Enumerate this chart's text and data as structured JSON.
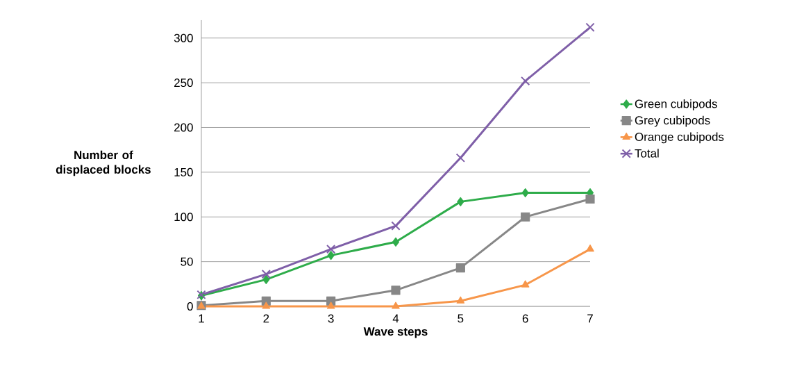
{
  "chart_data": {
    "type": "line",
    "xlabel": "Wave steps",
    "ylabel": "Number of displaced blocks",
    "categories": [
      "1",
      "2",
      "3",
      "4",
      "5",
      "6",
      "7"
    ],
    "series": [
      {
        "name": "Green cubipods",
        "color": "#2eac4a",
        "marker": "diamond",
        "values": [
          12,
          30,
          57,
          72,
          117,
          127,
          127
        ]
      },
      {
        "name": "Grey cubipods",
        "color": "#878787",
        "marker": "square",
        "values": [
          1,
          6,
          6,
          18,
          43,
          100,
          120
        ]
      },
      {
        "name": "Orange cubipods",
        "color": "#f7964a",
        "marker": "triangle",
        "values": [
          0,
          0,
          0,
          0,
          6,
          24,
          64
        ]
      },
      {
        "name": "Total",
        "color": "#7f5fa8",
        "marker": "cross",
        "values": [
          13,
          36,
          64,
          90,
          166,
          252,
          312
        ]
      }
    ],
    "ylim": [
      0,
      320
    ],
    "yticks": [
      0,
      50,
      100,
      150,
      200,
      250,
      300
    ],
    "grid": "y",
    "legend": "right",
    "line_style": "solid"
  }
}
